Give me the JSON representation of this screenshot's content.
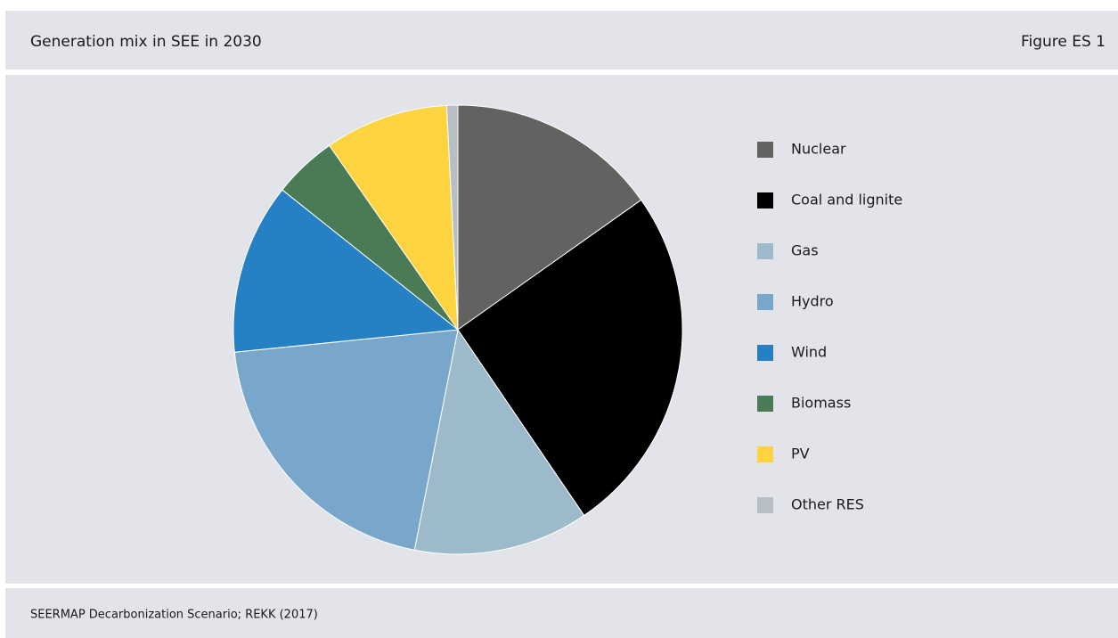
{
  "chart_data": {
    "type": "pie",
    "title": "Generation mix in SEE in 2030",
    "figure_label": "Figure ES 1",
    "source": "SEERMAP Decarbonization Scenario; REKK (2017)",
    "categories": [
      "Nuclear",
      "Coal and lignite",
      "Gas",
      "Hydro",
      "Wind",
      "Biomass",
      "PV",
      "Other RES"
    ],
    "values": [
      15.2,
      25.3,
      12.6,
      20.3,
      12.3,
      4.6,
      8.9,
      0.8
    ],
    "colors": [
      "#646260",
      "#000000",
      "#9dbacb",
      "#79a7cb",
      "#2581c4",
      "#4a7b56",
      "#fed340",
      "#b7bec6"
    ]
  }
}
